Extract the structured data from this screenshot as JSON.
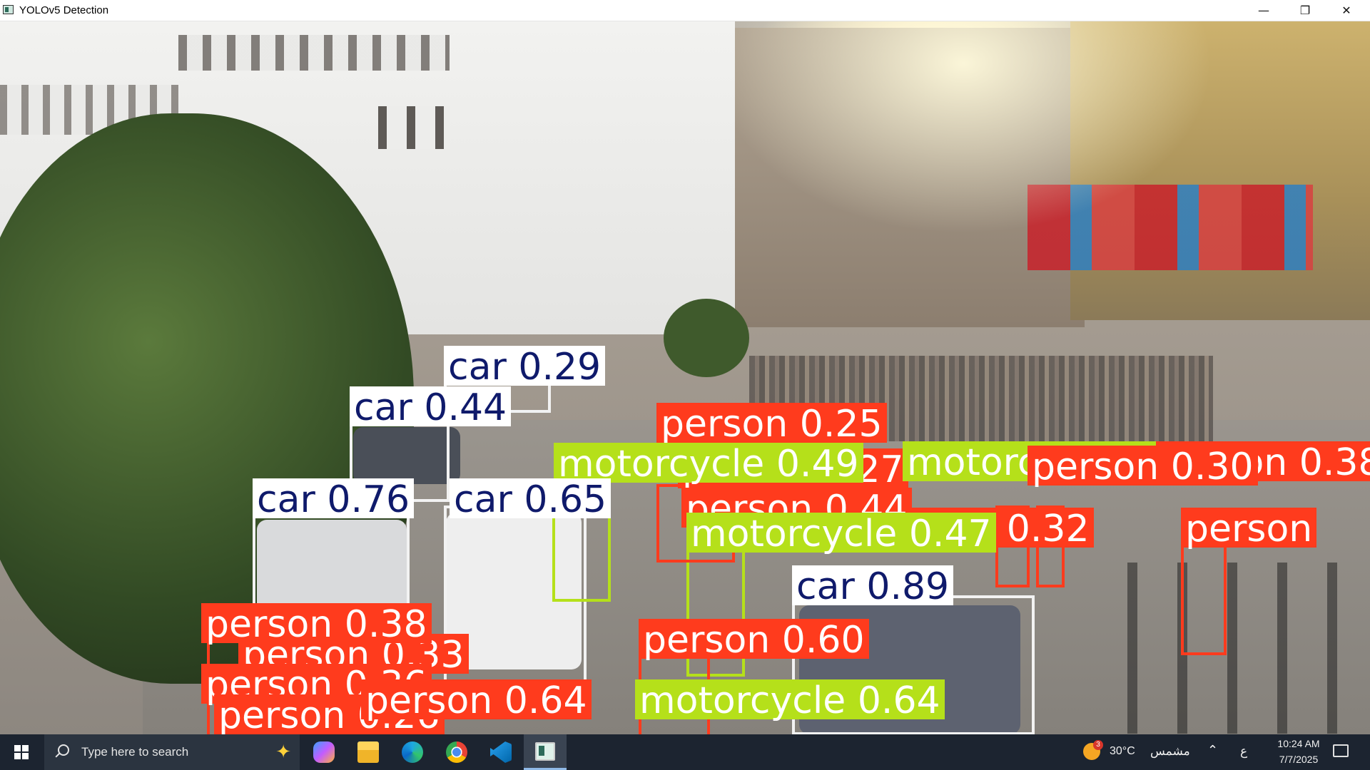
{
  "window": {
    "title": "YOLOv5 Detection",
    "controls": {
      "minimize": "—",
      "maximize": "❐",
      "close": "✕"
    }
  },
  "detections": [
    {
      "label": "car 0.29"
    },
    {
      "label": "car 0.44"
    },
    {
      "label": "person 0.25"
    },
    {
      "label": "motorcycle 0.49"
    },
    {
      "label": "person 0.27"
    },
    {
      "label": "motorcycle 0.44"
    },
    {
      "label": "person 0.38"
    },
    {
      "label": "person 0.30"
    },
    {
      "label": "car 0.76"
    },
    {
      "label": "car 0.65"
    },
    {
      "label": "person 0.44"
    },
    {
      "label": "person 0.32"
    },
    {
      "label": "motorcycle 0.47"
    },
    {
      "label": "person"
    },
    {
      "label": "car 0.89"
    },
    {
      "label": "person 0.38"
    },
    {
      "label": "person 0.33"
    },
    {
      "label": "person 0.60"
    },
    {
      "label": "person 0.36"
    },
    {
      "label": "person 0.64"
    },
    {
      "label": "person 0.26"
    },
    {
      "label": "motorcycle 0.64"
    }
  ],
  "colors": {
    "car": "#ffffff",
    "person": "#ff3b1d",
    "motorcycle": "#b5e01a",
    "car_text": "#0f1a6b"
  },
  "taskbar": {
    "search_placeholder": "Type here to search",
    "apps": [
      "copilot-icon",
      "file-explorer-icon",
      "edge-icon",
      "chrome-icon",
      "vscode-icon",
      "yolo-app-icon"
    ],
    "weather_badge": "3",
    "weather": "30°C",
    "weather_desc": "مشمس",
    "language": "ع",
    "time": "10:24 AM",
    "date": "7/7/2025"
  }
}
